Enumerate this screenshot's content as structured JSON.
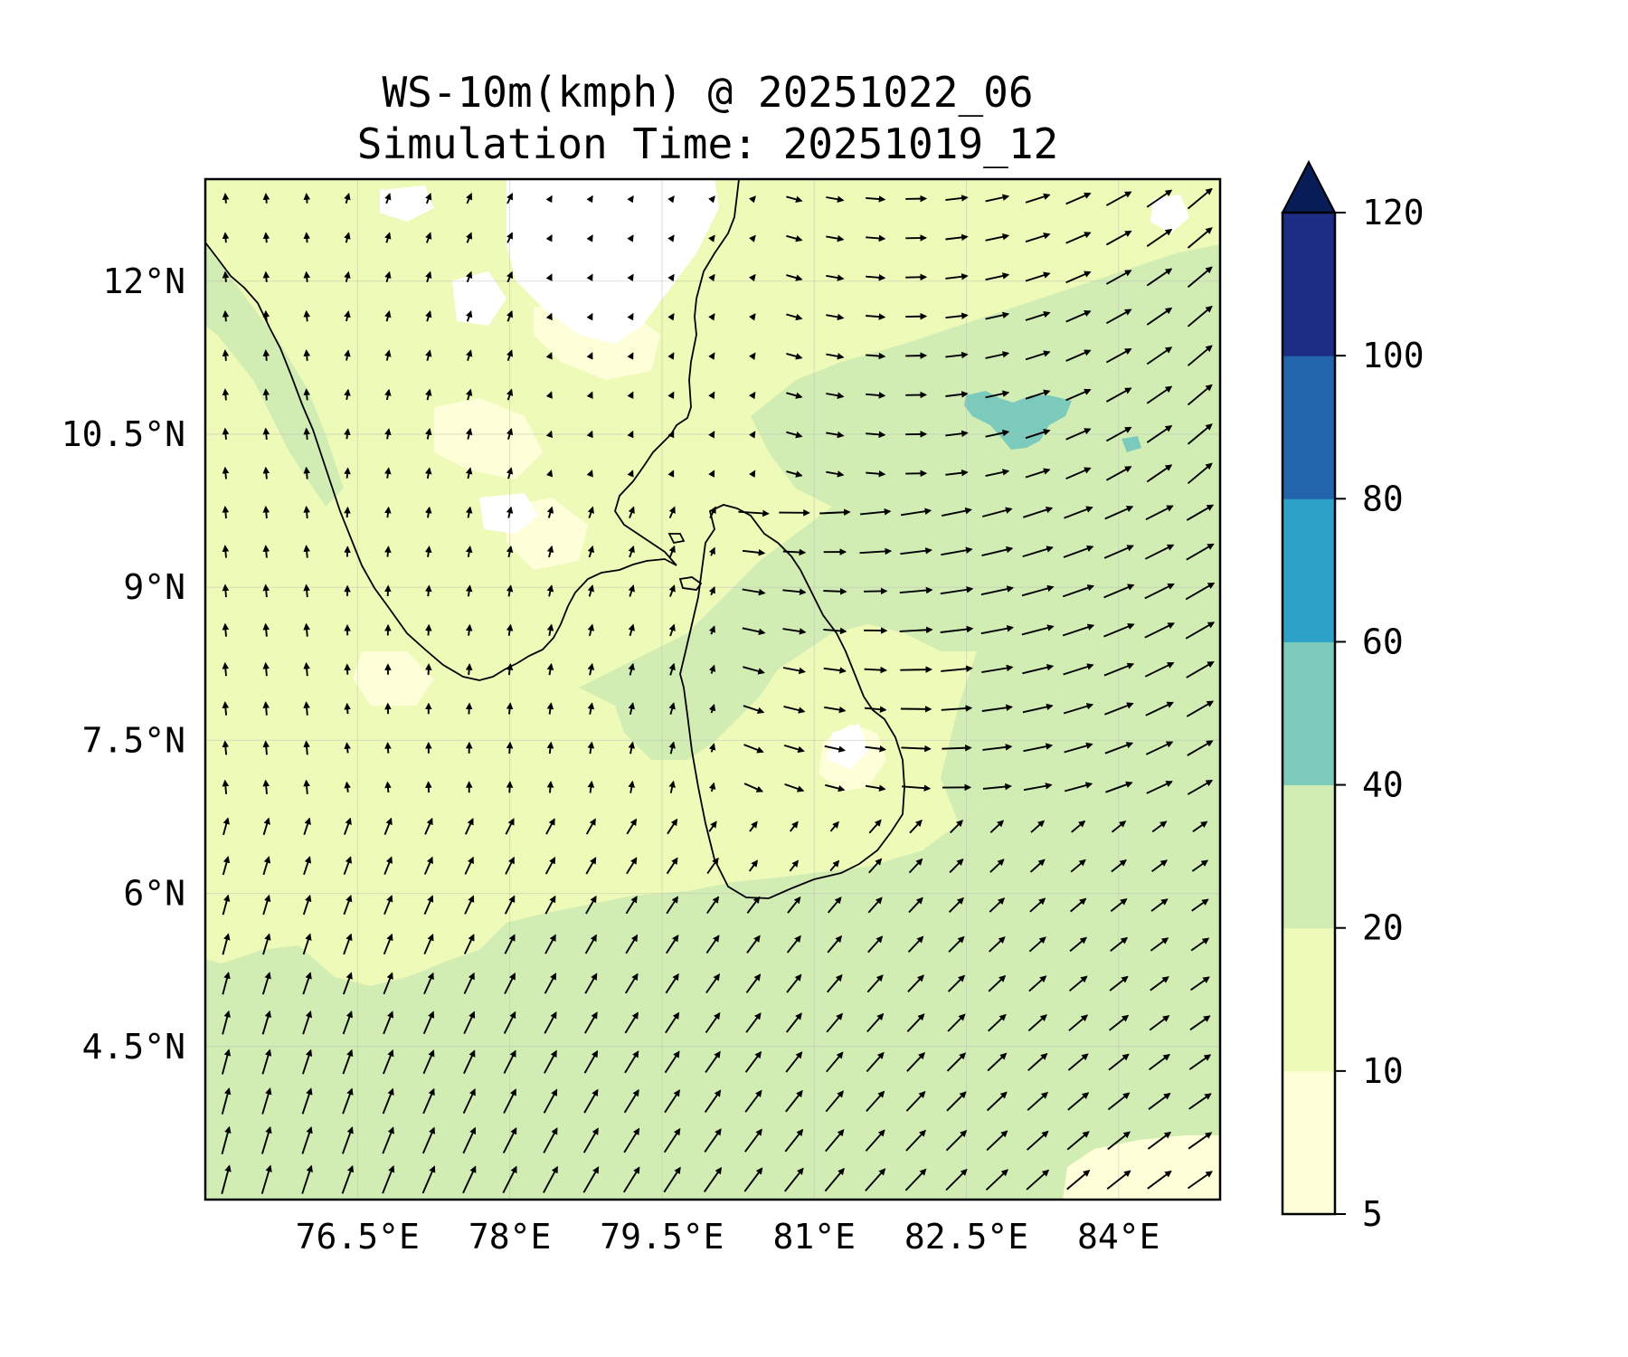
{
  "title": {
    "line1": "WS-10m(kmph) @ 20251022_06",
    "line2": "Simulation Time: 20251019_12"
  },
  "map": {
    "lon_range": [
      75,
      85
    ],
    "lat_range": [
      3,
      13
    ],
    "x_ticks": [
      {
        "value": 76.5,
        "label": "76.5°E"
      },
      {
        "value": 78,
        "label": "78°E"
      },
      {
        "value": 79.5,
        "label": "79.5°E"
      },
      {
        "value": 81,
        "label": "81°E"
      },
      {
        "value": 82.5,
        "label": "82.5°E"
      },
      {
        "value": 84,
        "label": "84°E"
      }
    ],
    "y_ticks": [
      {
        "value": 12,
        "label": "12°N"
      },
      {
        "value": 10.5,
        "label": "10.5°N"
      },
      {
        "value": 9,
        "label": "9°N"
      },
      {
        "value": 7.5,
        "label": "7.5°N"
      },
      {
        "value": 6,
        "label": "6°N"
      },
      {
        "value": 4.5,
        "label": "4.5°N"
      }
    ],
    "gridlines": true,
    "vectors": "wind arrows (10 m wind direction)"
  },
  "colorbar": {
    "levels": [
      5,
      10,
      20,
      40,
      60,
      80,
      100,
      120
    ],
    "labels": [
      "5",
      "10",
      "20",
      "40",
      "60",
      "80",
      "100",
      "120"
    ],
    "colors": [
      "#feffd8",
      "#eefab7",
      "#d2edb4",
      "#7ccabc",
      "#2da1c8",
      "#2365ac",
      "#1d2d84"
    ],
    "extend_color": "#081d58",
    "extend": "max"
  }
}
